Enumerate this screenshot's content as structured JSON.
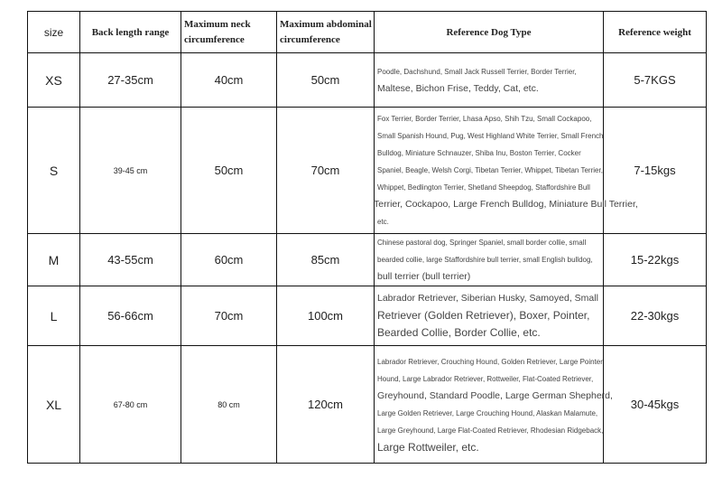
{
  "headers": [
    "size",
    "Back length range",
    "Maximum neck circumference",
    "Maximum abdominal circumference",
    "Reference Dog Type",
    "Reference weight"
  ],
  "rows": [
    {
      "size": "XS",
      "back": "27-35cm",
      "neck": "40cm",
      "abdomen": "50cm",
      "weight": "5-7KGS",
      "dogs": [
        "Poodle, Dachshund, Small Jack Russell Terrier, Border Terrier,",
        "Maltese, Bichon Frise, Teddy, Cat, etc."
      ]
    },
    {
      "size": "S",
      "back": "39-45 cm",
      "neck": "50cm",
      "abdomen": "70cm",
      "weight": "7-15kgs",
      "dogs": [
        "Fox Terrier, Border Terrier, Lhasa Apso, Shih Tzu, Small Cockapoo,",
        "Small Spanish Hound, Pug, West Highland White Terrier, Small French",
        "Bulldog, Miniature Schnauzer, Shiba Inu, Boston Terrier, Cocker",
        "Spaniel, Beagle, Welsh Corgi, Tibetan Terrier, Whippet, Tibetan Terrier,",
        "Whippet, Bedlington Terrier, Shetland Sheepdog, Staffordshire Bull",
        "Terrier, Cockapoo, Large French Bulldog, Miniature Bull Terrier,",
        "etc."
      ]
    },
    {
      "size": "M",
      "back": "43-55cm",
      "neck": "60cm",
      "abdomen": "85cm",
      "weight": "15-22kgs",
      "dogs": [
        "Chinese pastoral dog, Springer Spaniel, small border collie, small",
        "bearded collie, large Staffordshire bull terrier, small English bulldog,",
        "bull terrier (bull terrier)"
      ]
    },
    {
      "size": "L",
      "back": "56-66cm",
      "neck": "70cm",
      "abdomen": "100cm",
      "weight": "22-30kgs",
      "dogs": [
        "Labrador Retriever, Siberian Husky, Samoyed, Small",
        "Retriever (Golden Retriever), Boxer, Pointer,",
        "Bearded Collie, Border Collie, etc."
      ]
    },
    {
      "size": "XL",
      "back": "67-80 cm",
      "neck": "80 cm",
      "abdomen": "120cm",
      "weight": "30-45kgs",
      "dogs": [
        "Labrador Retriever, Crouching Hound, Golden Retriever, Large Pointer",
        "Hound, Large Labrador Retriever, Rottweiler, Flat-Coated Retriever,",
        "Greyhound, Standard Poodle, Large German Shepherd,",
        "Large Golden Retriever, Large Crouching Hound, Alaskan Malamute,",
        "Large Greyhound, Large Flat-Coated Retriever, Rhodesian Ridgeback,",
        "Large Rottweiler, etc."
      ]
    }
  ]
}
